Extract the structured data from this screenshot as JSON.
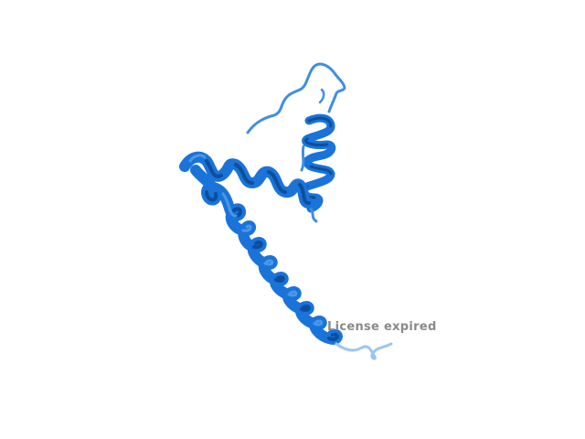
{
  "image": {
    "subject": "protein-ribbon-cartoon"
  },
  "colors": {
    "background": "#ffffff",
    "helix": "#1a73d9",
    "helix_dark": "#0b4f9e",
    "helix_light": "#4a98ea",
    "coil": "#3f8fe0",
    "coil_faded": "#9cc6ef",
    "watermark": "#8a8a8a"
  },
  "watermark": {
    "text": "License expired"
  }
}
